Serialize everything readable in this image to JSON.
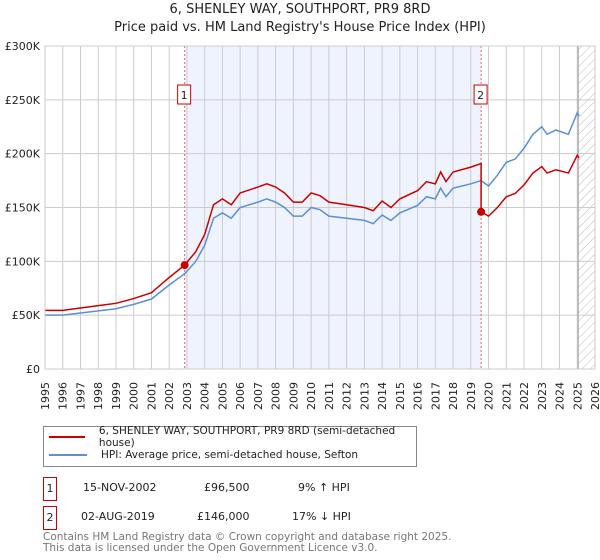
{
  "header": {
    "title_line1": "6, SHENLEY WAY, SOUTHPORT, PR9 8RD",
    "title_line2": "Price paid vs. HM Land Registry's House Price Index (HPI)"
  },
  "chart_data": {
    "type": "line",
    "title": "Price paid vs. HM Land Registry's House Price Index (HPI)",
    "xlim": [
      1995,
      2026
    ],
    "ylim": [
      0,
      300000
    ],
    "x_ticks": [
      "1995",
      "1996",
      "1997",
      "1998",
      "1999",
      "2000",
      "2001",
      "2002",
      "2003",
      "2004",
      "2005",
      "2006",
      "2007",
      "2008",
      "2009",
      "2010",
      "2011",
      "2012",
      "2013",
      "2014",
      "2015",
      "2016",
      "2017",
      "2018",
      "2019",
      "2020",
      "2021",
      "2022",
      "2023",
      "2024",
      "2025",
      "2026"
    ],
    "y_ticks": [
      {
        "value": 0,
        "label": "£0"
      },
      {
        "value": 50000,
        "label": "£50K"
      },
      {
        "value": 100000,
        "label": "£100K"
      },
      {
        "value": 150000,
        "label": "£150K"
      },
      {
        "value": 200000,
        "label": "£200K"
      },
      {
        "value": 250000,
        "label": "£250K"
      },
      {
        "value": 300000,
        "label": "£300K"
      }
    ],
    "grid": true,
    "shaded_range": [
      2002.87,
      2019.58
    ],
    "hatched_from": 2025.05,
    "series": [
      {
        "name": "6, SHENLEY WAY, SOUTHPORT, PR9 8RD (semi-detached house)",
        "color": "#cc0000",
        "x": [
          1995,
          1996,
          1997,
          1998,
          1999,
          2000,
          2001,
          2002,
          2002.87,
          2003.5,
          2004,
          2004.5,
          2005,
          2005.5,
          2006,
          2007,
          2007.5,
          2008,
          2008.5,
          2009,
          2009.5,
          2010,
          2010.5,
          2011,
          2012,
          2013,
          2013.5,
          2014,
          2014.5,
          2015,
          2016,
          2016.5,
          2017,
          2017.3,
          2017.6,
          2018,
          2019,
          2019.58,
          2019.58,
          2020,
          2020.5,
          2021,
          2021.5,
          2022,
          2022.5,
          2023,
          2023.3,
          2023.8,
          2024.5,
          2025,
          2025.1
        ],
        "y": [
          54500,
          54500,
          56700,
          58900,
          61000,
          65400,
          70900,
          85000,
          96500,
          109000,
          125000,
          152600,
          158000,
          152600,
          163500,
          169000,
          172000,
          169000,
          163500,
          155000,
          155000,
          163500,
          161000,
          155000,
          152600,
          150000,
          147000,
          156000,
          150000,
          158000,
          165700,
          174000,
          172000,
          183000,
          174000,
          183000,
          187500,
          190800,
          146000,
          142000,
          150000,
          160000,
          163000,
          171000,
          182000,
          188000,
          182000,
          185000,
          182000,
          198500,
          196000
        ]
      },
      {
        "name": "HPI: Average price, semi-detached house, Sefton",
        "color": "#5b8fd6",
        "x": [
          1995,
          1996,
          1997,
          1998,
          1999,
          2000,
          2001,
          2002,
          2002.87,
          2003.5,
          2004,
          2004.5,
          2005,
          2005.5,
          2006,
          2007,
          2007.5,
          2008,
          2008.5,
          2009,
          2009.5,
          2010,
          2010.5,
          2011,
          2012,
          2013,
          2013.5,
          2014,
          2014.5,
          2015,
          2016,
          2016.5,
          2017,
          2017.3,
          2017.6,
          2018,
          2019,
          2019.58,
          2020,
          2020.5,
          2021,
          2021.5,
          2022,
          2022.5,
          2023,
          2023.3,
          2023.8,
          2024.5,
          2025,
          2025.1
        ],
        "y": [
          50000,
          50000,
          52000,
          54000,
          56000,
          60000,
          65000,
          78000,
          88500,
          100000,
          115000,
          140000,
          145000,
          140000,
          150000,
          155000,
          158000,
          155000,
          150000,
          142000,
          142000,
          150000,
          148000,
          142000,
          140000,
          138000,
          135000,
          143000,
          138000,
          145000,
          152000,
          160000,
          158000,
          168000,
          160000,
          168000,
          172000,
          175000,
          170000,
          180000,
          192000,
          195000,
          205000,
          218000,
          225000,
          218000,
          222000,
          218000,
          238000,
          235000
        ]
      }
    ],
    "annotations": [
      {
        "label": "1",
        "x": 2002.87,
        "y": 96500
      },
      {
        "label": "2",
        "x": 2019.58,
        "y": 146000
      }
    ]
  },
  "legend": {
    "items": [
      {
        "label": "6, SHENLEY WAY, SOUTHPORT, PR9 8RD (semi-detached house)",
        "color": "#cc0000"
      },
      {
        "label": "HPI: Average price, semi-detached house, Sefton",
        "color": "#5b8fd6"
      }
    ]
  },
  "transactions": [
    {
      "num": "1",
      "date": "15-NOV-2002",
      "price": "£96,500",
      "hpi": "9% ↑ HPI"
    },
    {
      "num": "2",
      "date": "02-AUG-2019",
      "price": "£146,000",
      "hpi": "17% ↓ HPI"
    }
  ],
  "footer": {
    "line1": "Contains HM Land Registry data © Crown copyright and database right 2025.",
    "line2": "This data is licensed under the Open Government Licence v3.0."
  }
}
